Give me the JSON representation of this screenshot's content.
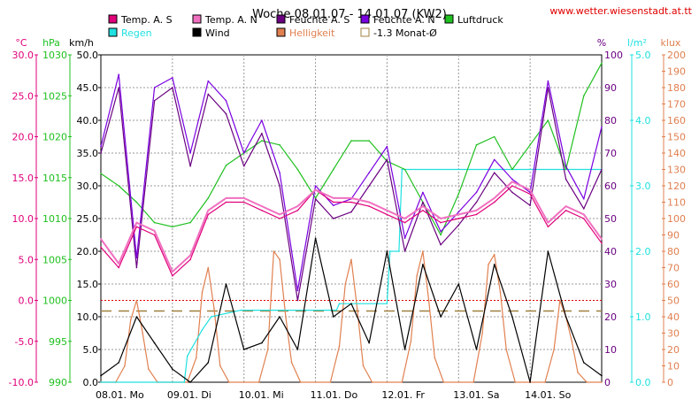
{
  "header": {
    "title": "Woche 08.01.07 - 14.01.07 (KW2)",
    "url": "www.wetter.wiesenstadt.at.tt"
  },
  "legend": [
    {
      "label": "Temp. A. S",
      "color": "#e0007a"
    },
    {
      "label": "Temp. A. N",
      "color": "#f070c0"
    },
    {
      "label": "Feuchte A. S",
      "color": "#6a0080"
    },
    {
      "label": "Feuchte A. N",
      "color": "#7a00e0"
    },
    {
      "label": "Luftdruck",
      "color": "#20c020"
    },
    {
      "label": "Regen",
      "color": "#20e0e0"
    },
    {
      "label": "Wind",
      "color": "#000000"
    },
    {
      "label": "Helligkeit",
      "color": "#e08050"
    },
    {
      "label": "-1.3 Monat-Ø",
      "color": "#a08040"
    }
  ],
  "axes": {
    "temp": {
      "unit": "°C",
      "ticks": [
        "30.0",
        "25.0",
        "20.0",
        "15.0",
        "10.0",
        "5.0",
        "0.0",
        "-5.0",
        "-10.0"
      ],
      "color": "#e0007a",
      "range": [
        -10,
        30
      ]
    },
    "pressure": {
      "unit": "hPa",
      "ticks": [
        "1030",
        "1025",
        "1020",
        "1015",
        "1010",
        "1005",
        "1000",
        "995",
        "990"
      ],
      "color": "#20c020",
      "range": [
        990,
        1030
      ]
    },
    "wind": {
      "unit": "km/h",
      "ticks": [
        "50.0",
        "45.0",
        "40.0",
        "35.0",
        "30.0",
        "25.0",
        "20.0",
        "15.0",
        "10.0",
        "5.0",
        "0.0"
      ],
      "color": "#000000",
      "range": [
        0,
        50
      ]
    },
    "humidity": {
      "unit": "%",
      "ticks": [
        "100",
        "90",
        "80",
        "70",
        "60",
        "50",
        "40",
        "30",
        "20",
        "10",
        "0"
      ],
      "color": "#7a00e0",
      "range": [
        0,
        100
      ]
    },
    "rain": {
      "unit": "l/m²",
      "ticks": [
        "5.0",
        "4.0",
        "3.0",
        "2.0",
        "1.0",
        "0.0"
      ],
      "color": "#20e0e0",
      "range": [
        0,
        5
      ]
    },
    "light": {
      "unit": "klux",
      "ticks": [
        "200",
        "190",
        "180",
        "170",
        "160",
        "150",
        "140",
        "130",
        "120",
        "110",
        "100",
        "90",
        "80",
        "70",
        "60",
        "50",
        "40",
        "30",
        "20",
        "10",
        "0"
      ],
      "color": "#e08050",
      "range": [
        0,
        200
      ]
    }
  },
  "x_labels": [
    "08.01. Mo",
    "09.01. Di",
    "10.01. Mi",
    "11.01. Do",
    "12.01. Fr",
    "13.01. Sa",
    "14.01. So"
  ],
  "chart_data": {
    "type": "line",
    "title": "Woche 08.01.07 - 14.01.07 (KW2)",
    "x_unit": "hours since 08.01.07 00:00",
    "grid": true,
    "reference_lines": [
      {
        "name": "0 °C",
        "axis": "temp",
        "value": 0.0,
        "color": "#e00000"
      },
      {
        "name": "-1.3 Monat-Ø",
        "axis": "temp",
        "value": -1.3,
        "color": "#a08040"
      }
    ],
    "series": [
      {
        "name": "Luftdruck",
        "axis": "pressure",
        "color": "#20c020",
        "x": [
          0,
          6,
          12,
          18,
          24,
          30,
          36,
          42,
          48,
          54,
          60,
          66,
          72,
          78,
          84,
          90,
          96,
          102,
          108,
          114,
          120,
          126,
          132,
          138,
          144,
          150,
          156,
          162,
          168
        ],
        "values": [
          1015.5,
          1014,
          1012,
          1009.5,
          1009,
          1009.5,
          1012.5,
          1016.5,
          1018,
          1019.5,
          1019,
          1016,
          1012.5,
          1016,
          1019.5,
          1019.5,
          1017,
          1016,
          1012,
          1008,
          1013,
          1019,
          1020,
          1016,
          1019,
          1022,
          1016,
          1025,
          1029
        ]
      },
      {
        "name": "Temp. A. S",
        "axis": "temp",
        "color": "#e0007a",
        "x": [
          0,
          6,
          12,
          18,
          24,
          30,
          36,
          42,
          48,
          54,
          60,
          66,
          72,
          78,
          84,
          90,
          96,
          102,
          108,
          114,
          120,
          126,
          132,
          138,
          144,
          150,
          156,
          162,
          168
        ],
        "values": [
          6.5,
          4,
          9,
          8,
          3,
          5,
          10.5,
          12,
          12,
          11,
          10,
          11,
          13.5,
          12,
          12,
          11.5,
          10.5,
          9.5,
          11,
          9.5,
          10,
          10.5,
          12,
          14,
          13,
          9,
          11,
          10,
          7
        ]
      },
      {
        "name": "Temp. A. N",
        "axis": "temp",
        "color": "#f070c0",
        "x": [
          0,
          6,
          12,
          18,
          24,
          30,
          36,
          42,
          48,
          54,
          60,
          66,
          72,
          78,
          84,
          90,
          96,
          102,
          108,
          114,
          120,
          126,
          132,
          138,
          144,
          150,
          156,
          162,
          168
        ],
        "values": [
          7.5,
          4.5,
          9.5,
          8.5,
          3.5,
          5.5,
          11,
          12.5,
          12.5,
          11.5,
          10.5,
          11.5,
          13.5,
          12.5,
          12.5,
          12,
          11,
          10,
          11.5,
          10,
          10.5,
          11,
          12.5,
          14.5,
          13.5,
          9.5,
          11.5,
          10.5,
          7.5
        ]
      },
      {
        "name": "Feuchte A. S",
        "axis": "humidity",
        "color": "#6a0080",
        "x": [
          0,
          6,
          12,
          18,
          24,
          30,
          36,
          42,
          48,
          54,
          60,
          66,
          72,
          78,
          84,
          90,
          96,
          102,
          108,
          114,
          120,
          126,
          132,
          138,
          144,
          150,
          156,
          162,
          168
        ],
        "values": [
          70,
          90,
          35,
          86,
          90,
          66,
          88,
          82,
          66,
          76,
          60,
          25,
          56,
          50,
          52,
          60,
          68,
          40,
          55,
          42,
          48,
          55,
          64,
          58,
          54,
          90,
          62,
          53,
          65
        ]
      },
      {
        "name": "Feuchte A. N",
        "axis": "humidity",
        "color": "#7a00e0",
        "x": [
          0,
          6,
          12,
          18,
          24,
          30,
          36,
          42,
          48,
          54,
          60,
          66,
          72,
          78,
          84,
          90,
          96,
          102,
          108,
          114,
          120,
          126,
          132,
          138,
          144,
          150,
          156,
          162,
          168
        ],
        "values": [
          72,
          94,
          38,
          90,
          93,
          70,
          92,
          86,
          70,
          80,
          64,
          28,
          60,
          54,
          56,
          64,
          72,
          44,
          58,
          46,
          52,
          58,
          68,
          62,
          58,
          92,
          66,
          56,
          78
        ]
      },
      {
        "name": "Regen",
        "axis": "rain",
        "color": "#20e0e0",
        "x": [
          0,
          28,
          29,
          34,
          37,
          47,
          48,
          79,
          80,
          96,
          97,
          100,
          101,
          168
        ],
        "values": [
          0,
          0,
          0.4,
          0.8,
          1.0,
          1.1,
          1.1,
          1.1,
          1.2,
          1.2,
          2.0,
          2.0,
          3.25,
          3.25
        ]
      },
      {
        "name": "Wind",
        "axis": "wind",
        "color": "#000000",
        "x": [
          0,
          6,
          12,
          18,
          24,
          30,
          36,
          42,
          48,
          54,
          60,
          66,
          72,
          78,
          84,
          90,
          96,
          102,
          108,
          114,
          120,
          126,
          132,
          138,
          144,
          150,
          156,
          162,
          168
        ],
        "values": [
          1,
          3,
          10,
          6,
          2,
          0,
          3,
          15,
          5,
          6,
          10,
          5,
          22,
          10,
          12,
          6,
          20,
          5,
          18,
          10,
          15,
          5,
          18,
          10,
          0,
          20,
          10,
          3,
          1
        ]
      },
      {
        "name": "Helligkeit",
        "axis": "light",
        "color": "#e08050",
        "x": [
          0,
          5,
          8,
          10,
          12,
          14,
          16,
          19,
          24,
          29,
          32,
          34,
          36,
          38,
          40,
          43,
          48,
          53,
          56,
          58,
          60,
          62,
          64,
          67,
          72,
          77,
          80,
          82,
          84,
          86,
          88,
          91,
          96,
          101,
          104,
          106,
          108,
          110,
          112,
          115,
          120,
          125,
          128,
          130,
          132,
          134,
          136,
          139,
          144,
          149,
          152,
          154,
          156,
          158,
          160,
          163,
          168
        ],
        "values": [
          0,
          0,
          10,
          38,
          50,
          30,
          8,
          0,
          0,
          0,
          15,
          55,
          70,
          45,
          10,
          0,
          0,
          0,
          20,
          80,
          75,
          40,
          12,
          0,
          0,
          0,
          22,
          60,
          75,
          45,
          10,
          0,
          0,
          0,
          25,
          65,
          80,
          50,
          15,
          0,
          0,
          0,
          30,
          72,
          78,
          55,
          20,
          0,
          0,
          0,
          20,
          50,
          40,
          25,
          6,
          0,
          0
        ]
      }
    ]
  }
}
